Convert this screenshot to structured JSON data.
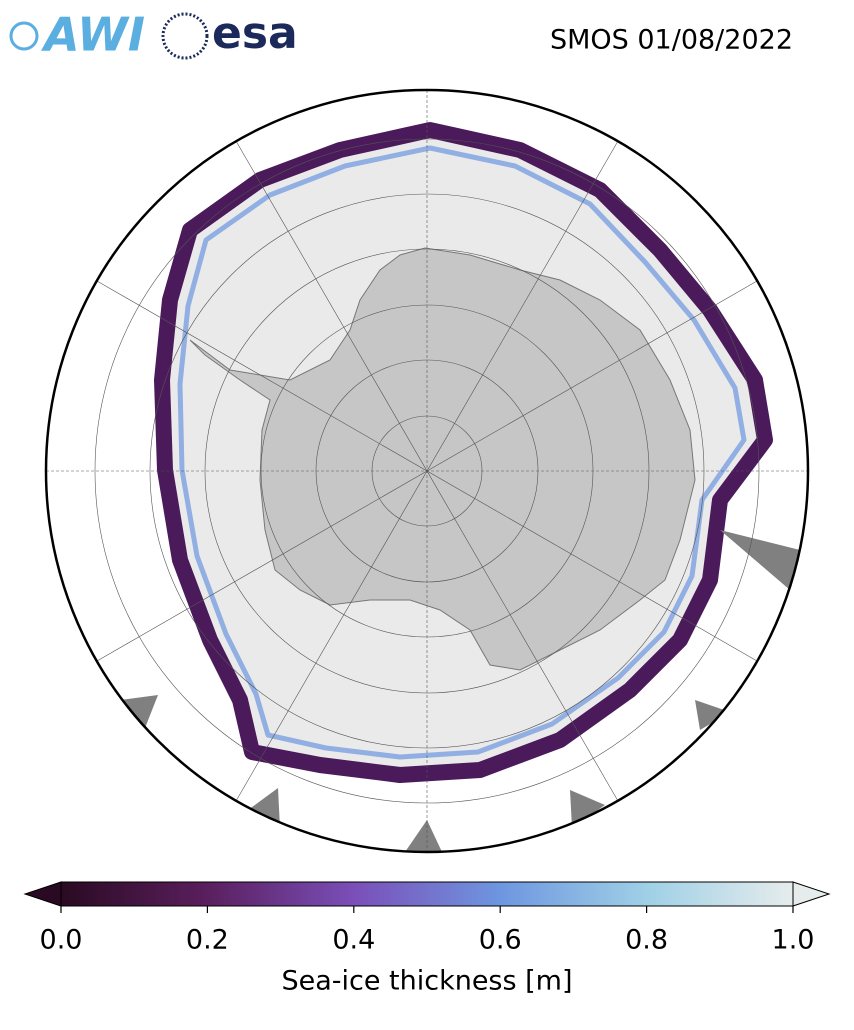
{
  "header": {
    "logos": [
      "AWI",
      "esa"
    ],
    "title": "SMOS 01/08/2022"
  },
  "colorbar": {
    "lim": [
      0,
      1
    ],
    "ticks": [
      {
        "value": 0,
        "label": "0.0"
      },
      0.2,
      0.4,
      0.6,
      0.8,
      {
        "value": 1,
        "label": "1.0"
      }
    ],
    "label": "Sea-ice thickness [m]",
    "colors": [
      "#2a0a22",
      "#5a1f5e",
      "#7a4fb8",
      "#6e96e0",
      "#9fd0e6",
      "#e6ecec"
    ]
  }
}
